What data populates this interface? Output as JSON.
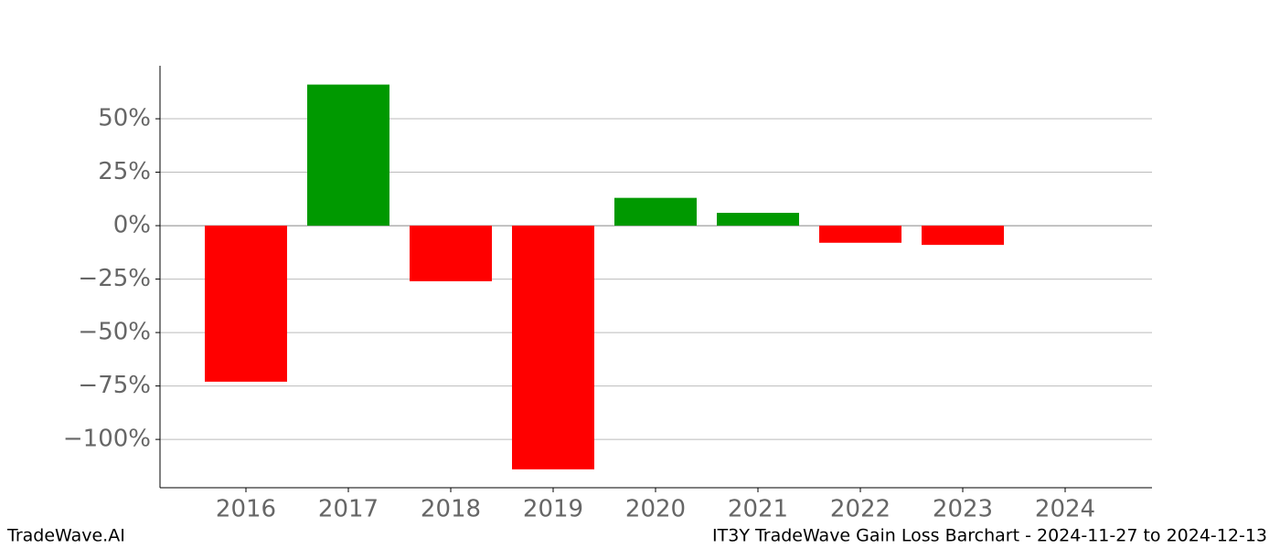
{
  "chart_data": {
    "type": "bar",
    "categories": [
      "2016",
      "2017",
      "2018",
      "2019",
      "2020",
      "2021",
      "2022",
      "2023",
      "2024"
    ],
    "values": [
      -73,
      66,
      -26,
      -114,
      13,
      6,
      -8,
      -9,
      0
    ],
    "colors": [
      "#ff0000",
      "#009900",
      "#ff0000",
      "#ff0000",
      "#009900",
      "#009900",
      "#ff0000",
      "#ff0000",
      "#009900"
    ],
    "ylim": [
      -122.6,
      74.8
    ],
    "yticks": [
      {
        "value": -100,
        "label": "−100%"
      },
      {
        "value": -75,
        "label": "−75%"
      },
      {
        "value": -50,
        "label": "−50%"
      },
      {
        "value": -25,
        "label": "−25%"
      },
      {
        "value": 0,
        "label": "0%"
      },
      {
        "value": 25,
        "label": "25%"
      },
      {
        "value": 50,
        "label": "50%"
      }
    ],
    "grid": true,
    "footer_left": "TradeWave.AI",
    "footer_right": "IT3Y TradeWave Gain Loss Barchart - 2024-11-27 to 2024-12-13"
  }
}
